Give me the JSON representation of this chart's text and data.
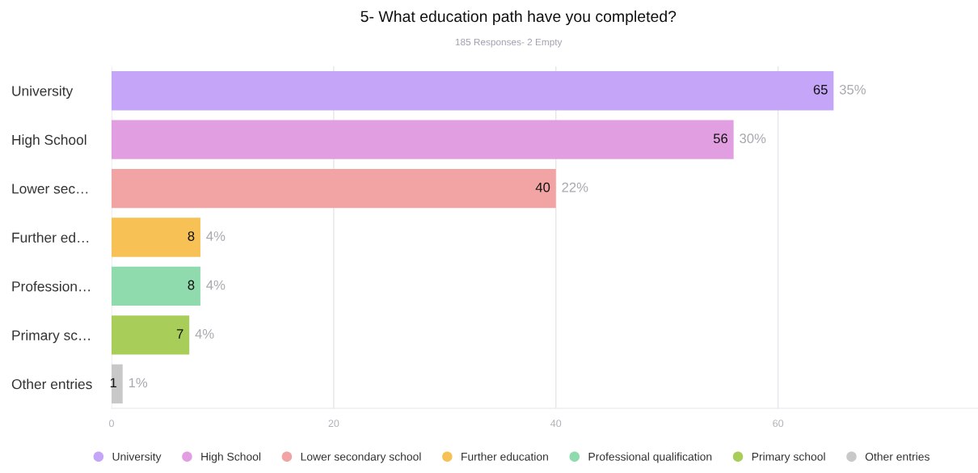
{
  "chart_data": {
    "type": "bar",
    "orientation": "horizontal",
    "stacked": true,
    "title": "5- What education path have you completed?",
    "subtitle": "185 Responses- 2 Empty",
    "categories": [
      "University",
      "High School",
      "Lower sec…",
      "Further ed…",
      "Profession…",
      "Primary sc…",
      "Other entries"
    ],
    "series": [
      {
        "name": "University",
        "color": "#c4a5f7",
        "values": [
          65,
          null,
          null,
          null,
          null,
          null,
          null
        ]
      },
      {
        "name": "High School",
        "color": "#e19ee0",
        "values": [
          null,
          56,
          null,
          null,
          null,
          null,
          null
        ]
      },
      {
        "name": "Lower secondary school",
        "color": "#f2a3a3",
        "values": [
          null,
          null,
          40,
          null,
          null,
          null,
          null
        ]
      },
      {
        "name": "Further education",
        "color": "#f7c156",
        "values": [
          null,
          null,
          null,
          8,
          null,
          null,
          null
        ]
      },
      {
        "name": "Professional qualification",
        "color": "#8fdbae",
        "values": [
          null,
          null,
          null,
          null,
          8,
          null,
          null
        ]
      },
      {
        "name": "Primary school",
        "color": "#a8cd58",
        "values": [
          null,
          null,
          null,
          null,
          null,
          7,
          null
        ]
      },
      {
        "name": "Other entries",
        "color": "#c8c8c8",
        "values": [
          null,
          null,
          null,
          null,
          null,
          null,
          1
        ]
      }
    ],
    "data_labels": true,
    "value_labels": [
      "35%",
      "30%",
      "22%",
      "4%",
      "4%",
      "4%",
      "1%"
    ],
    "xlim": [
      0,
      78
    ],
    "xticks": [
      0,
      20,
      40,
      60
    ],
    "grid": "x",
    "legend": "bottom"
  }
}
